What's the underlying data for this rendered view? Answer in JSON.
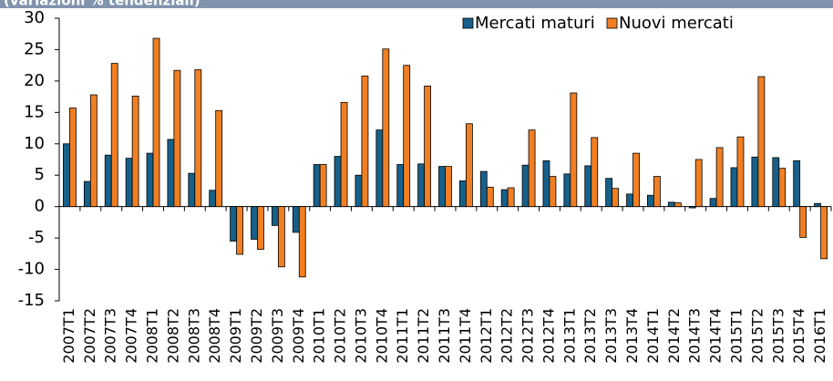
{
  "chart_data": {
    "type": "bar",
    "subtitle": "(variazioni % tendenziali)",
    "categories": [
      "2007T1",
      "2007T2",
      "2007T3",
      "2007T4",
      "2008T1",
      "2008T2",
      "2008T3",
      "2008T4",
      "2009T1",
      "2009T2",
      "2009T3",
      "2009T4",
      "2010T1",
      "2010T2",
      "2010T3",
      "2010T4",
      "2011T1",
      "2011T2",
      "2011T3",
      "2011T4",
      "2012T1",
      "2012T2",
      "2012T3",
      "2012T4",
      "2013T1",
      "2013T2",
      "2013T3",
      "2013T4",
      "2014T1",
      "2014T2",
      "2014T3",
      "2014T4",
      "2015T1",
      "2015T2",
      "2015T3",
      "2015T4",
      "2016T1"
    ],
    "series": [
      {
        "name": "Mercati maturi",
        "color": "#17608a",
        "values": [
          10,
          4,
          8.2,
          7.7,
          8.5,
          10.7,
          5.3,
          2.6,
          -5.5,
          -5.2,
          -3,
          -4.1,
          6.7,
          8,
          5,
          12.2,
          6.7,
          6.8,
          6.4,
          4.1,
          5.6,
          2.7,
          6.6,
          7.3,
          5.2,
          6.5,
          4.5,
          2,
          1.8,
          0.7,
          -0.2,
          1.3,
          6.2,
          7.9,
          7.8,
          7.3,
          0.5
        ]
      },
      {
        "name": "Nuovi mercati",
        "color": "#f07f24",
        "values": [
          15.7,
          17.8,
          22.8,
          17.6,
          26.8,
          21.7,
          21.8,
          15.3,
          -7.6,
          -6.8,
          -9.6,
          -11.2,
          6.7,
          16.6,
          20.8,
          25.1,
          22.5,
          19.2,
          6.4,
          13.2,
          3.1,
          3,
          12.2,
          4.8,
          18.1,
          11,
          2.9,
          8.5,
          4.8,
          0.6,
          7.5,
          9.4,
          11.1,
          20.7,
          6.1,
          -4.9,
          -8.3
        ]
      }
    ],
    "ylim": [
      -15,
      30
    ],
    "yticks": [
      -15,
      -10,
      -5,
      0,
      5,
      10,
      15,
      20,
      25,
      30
    ],
    "grid": false
  }
}
